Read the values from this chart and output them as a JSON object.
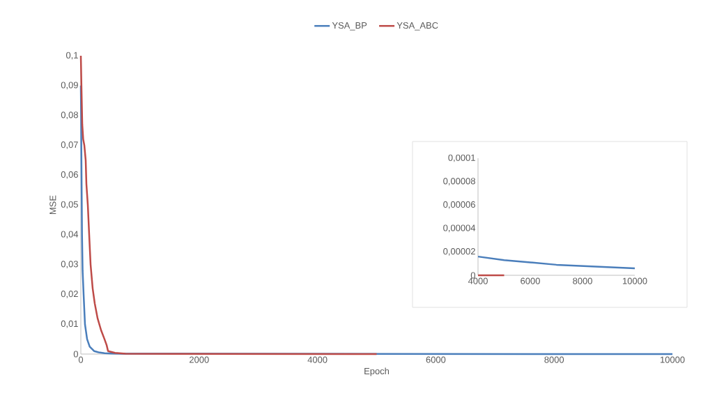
{
  "chart_data": [
    {
      "type": "line",
      "xlabel": "Epoch",
      "ylabel": "MSE",
      "legend": "top",
      "xlim": [
        0,
        10000
      ],
      "xticks": [
        0,
        2000,
        4000,
        6000,
        8000,
        10000
      ],
      "ylim": [
        0,
        0.1
      ],
      "yticks": [
        0,
        {
          "value": 0.01,
          "label": "0,01"
        },
        {
          "value": 0.02,
          "label": "0,02"
        },
        {
          "value": 0.03,
          "label": "0,03"
        },
        {
          "value": 0.04,
          "label": "0,04"
        },
        {
          "value": 0.05,
          "label": "0,05"
        },
        {
          "value": 0.06,
          "label": "0,06"
        },
        {
          "value": 0.07,
          "label": "0,07"
        },
        {
          "value": 0.08,
          "label": "0,08"
        },
        {
          "value": 0.09,
          "label": "0,09"
        },
        {
          "value": 0.1,
          "label": "0,1"
        }
      ],
      "series": [
        {
          "name": "YSA_BP",
          "color": "#4a7ebb",
          "x": [
            0,
            5,
            10,
            20,
            30,
            47,
            70,
            106,
            150,
            224,
            300,
            400,
            520,
            700,
            10000
          ],
          "values": [
            0.09,
            0.08,
            0.065,
            0.04,
            0.028,
            0.02,
            0.01,
            0.005,
            0.0025,
            0.001,
            0.0006,
            0.0003,
            0.0002,
            0.0001,
            0
          ]
        },
        {
          "name": "YSA_ABC",
          "color": "#be4b48",
          "x": [
            0,
            10,
            24,
            40,
            59,
            82,
            94,
            118,
            141,
            165,
            200,
            235,
            283,
            342,
            400,
            436,
            460,
            577,
            754,
            5000
          ],
          "values": [
            0.1,
            0.09,
            0.077,
            0.072,
            0.07,
            0.065,
            0.057,
            0.05,
            0.04,
            0.03,
            0.022,
            0.017,
            0.012,
            0.008,
            0.005,
            0.003,
            0.001,
            0.0004,
            0.0001,
            0
          ]
        }
      ]
    },
    {
      "type": "line",
      "xlim": [
        4000,
        10000
      ],
      "xticks": [
        4000,
        6000,
        8000,
        10000
      ],
      "ylim": [
        0,
        0.0001
      ],
      "yticks": [
        0,
        {
          "value": 2e-05,
          "label": "0,00002"
        },
        {
          "value": 4e-05,
          "label": "0,00004"
        },
        {
          "value": 6e-05,
          "label": "0,00006"
        },
        {
          "value": 8e-05,
          "label": "0,00008"
        },
        {
          "value": 0.0001,
          "label": "0,0001"
        }
      ],
      "series": [
        {
          "color": "#4a7ebb",
          "x": [
            4000,
            5000,
            6000,
            7000,
            8000,
            9000,
            10000
          ],
          "values": [
            1.6e-05,
            1.3e-05,
            1.1e-05,
            9e-06,
            8e-06,
            7e-06,
            6e-06
          ]
        },
        {
          "color": "#be4b48",
          "x": [
            4000,
            5000
          ],
          "values": [
            0,
            0
          ]
        }
      ]
    }
  ]
}
